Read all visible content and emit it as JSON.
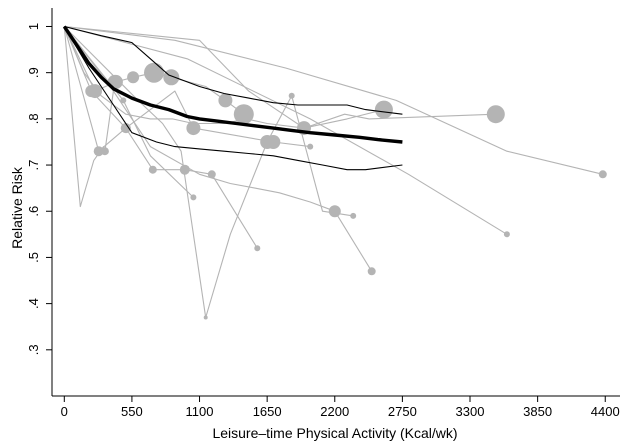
{
  "chart_data": {
    "type": "line",
    "title": "",
    "xlabel": "Leisure–time Physical Activity (Kcal/wk)",
    "ylabel": "Relative Risk",
    "xlim": [
      -100,
      4520
    ],
    "ylim": [
      0.2,
      1.04
    ],
    "xticks": [
      0,
      550,
      1100,
      1650,
      2200,
      2750,
      3300,
      3850,
      4400
    ],
    "xtick_labels": [
      "0",
      "550",
      "1100",
      "1650",
      "2200",
      "2750",
      "3300",
      "3850",
      "4400"
    ],
    "yticks": [
      1.0,
      0.9,
      0.8,
      0.7,
      0.6,
      0.5,
      0.4,
      0.3
    ],
    "ytick_labels": [
      "1",
      ".9",
      ".8",
      ".7",
      ".6",
      ".5",
      ".4",
      ".3"
    ],
    "grid": false,
    "pooled_curve": {
      "x": [
        0,
        100,
        200,
        300,
        400,
        550,
        700,
        850,
        1000,
        1100,
        1250,
        1400,
        1550,
        1700,
        1850,
        2000,
        2200,
        2400,
        2550,
        2750
      ],
      "y": [
        1.0,
        0.96,
        0.92,
        0.89,
        0.865,
        0.845,
        0.83,
        0.82,
        0.805,
        0.8,
        0.795,
        0.79,
        0.785,
        0.78,
        0.775,
        0.77,
        0.765,
        0.76,
        0.755,
        0.75
      ]
    },
    "ci_upper": {
      "x": [
        0,
        300,
        550,
        700,
        850,
        1000,
        1100,
        1300,
        1500,
        1700,
        1900,
        2100,
        2300,
        2450,
        2750
      ],
      "y": [
        1.0,
        0.98,
        0.965,
        0.93,
        0.895,
        0.88,
        0.87,
        0.855,
        0.845,
        0.835,
        0.83,
        0.83,
        0.83,
        0.82,
        0.81
      ]
    },
    "ci_lower": {
      "x": [
        0,
        200,
        400,
        550,
        750,
        900,
        1100,
        1300,
        1500,
        1700,
        1900,
        2100,
        2300,
        2450,
        2750
      ],
      "y": [
        1.0,
        0.91,
        0.83,
        0.77,
        0.75,
        0.74,
        0.735,
        0.73,
        0.725,
        0.72,
        0.71,
        0.7,
        0.69,
        0.69,
        0.7
      ]
    },
    "series": [
      {
        "x": [
          0,
          130,
          240,
          320,
          330,
          410
        ],
        "y": [
          1.0,
          0.61,
          0.71,
          0.74,
          0.73,
          0.88
        ],
        "sizes": [
          0,
          0,
          0,
          0,
          4,
          7
        ]
      },
      {
        "x": [
          0,
          220,
          500,
          720,
          980,
          1200,
          1570
        ],
        "y": [
          1.0,
          0.86,
          0.78,
          0.69,
          0.69,
          0.68,
          0.52
        ],
        "sizes": [
          0,
          6,
          5,
          4,
          5,
          4,
          3
        ]
      },
      {
        "x": [
          0,
          160,
          300,
          500,
          700,
          880,
          1050,
          1300,
          1480,
          1650,
          1950,
          2280,
          2480,
          3510
        ],
        "y": [
          1.0,
          0.9,
          0.85,
          0.81,
          0.8,
          0.8,
          0.79,
          0.79,
          0.8,
          0.79,
          0.78,
          0.81,
          0.8,
          0.81
        ],
        "sizes": [
          0,
          0,
          0,
          0,
          0,
          0,
          0,
          0,
          0,
          0,
          0,
          0,
          0,
          9
        ]
      },
      {
        "x": [
          0,
          250,
          420,
          560,
          730,
          870,
          1150,
          1310,
          1460
        ],
        "y": [
          1.0,
          0.86,
          0.88,
          0.89,
          0.9,
          0.89,
          0.87,
          0.84,
          0.81
        ],
        "sizes": [
          0,
          7,
          7,
          6,
          10,
          8,
          0,
          7,
          10
        ]
      },
      {
        "x": [
          0,
          480,
          700,
          1050
        ],
        "y": [
          1.0,
          0.84,
          0.72,
          0.63
        ],
        "sizes": [
          0,
          3,
          0,
          3
        ]
      },
      {
        "x": [
          0,
          280,
          500,
          900,
          1050,
          1700,
          2000
        ],
        "y": [
          1.0,
          0.73,
          0.78,
          0.86,
          0.78,
          0.75,
          0.74
        ],
        "sizes": [
          0,
          5,
          5,
          0,
          7,
          7,
          3
        ]
      },
      {
        "x": [
          0,
          600,
          800,
          950,
          1150,
          1350,
          1650,
          1850,
          2100,
          2350
        ],
        "y": [
          1.0,
          0.84,
          0.79,
          0.73,
          0.37,
          0.55,
          0.75,
          0.85,
          0.6,
          0.59
        ],
        "sizes": [
          0,
          0,
          0,
          0,
          2,
          0,
          7,
          3,
          0,
          3
        ]
      },
      {
        "x": [
          0,
          350,
          700,
          1100,
          1350,
          1550,
          1750,
          2000,
          2200,
          2500
        ],
        "y": [
          1.0,
          0.88,
          0.74,
          0.68,
          0.66,
          0.65,
          0.64,
          0.62,
          0.6,
          0.47
        ],
        "sizes": [
          0,
          0,
          0,
          0,
          0,
          0,
          0,
          0,
          6,
          4
        ]
      },
      {
        "x": [
          0,
          1100,
          1500,
          1950,
          2300,
          2600
        ],
        "y": [
          1.0,
          0.97,
          0.86,
          0.78,
          0.8,
          0.82
        ],
        "sizes": [
          0,
          0,
          0,
          7,
          0,
          9
        ]
      },
      {
        "x": [
          0,
          900,
          1800,
          2700,
          3600,
          4380
        ],
        "y": [
          1.0,
          0.97,
          0.91,
          0.84,
          0.73,
          0.68
        ],
        "sizes": [
          0,
          0,
          0,
          0,
          0,
          4
        ]
      },
      {
        "x": [
          0,
          1000,
          2000,
          2800,
          3600
        ],
        "y": [
          1.0,
          0.93,
          0.8,
          0.68,
          0.55
        ],
        "sizes": [
          0,
          0,
          0,
          0,
          3
        ]
      }
    ],
    "colors": {
      "pooled": "#000000",
      "ci": "#000000",
      "studies": "#b4b4b4",
      "axis": "#000000"
    }
  }
}
